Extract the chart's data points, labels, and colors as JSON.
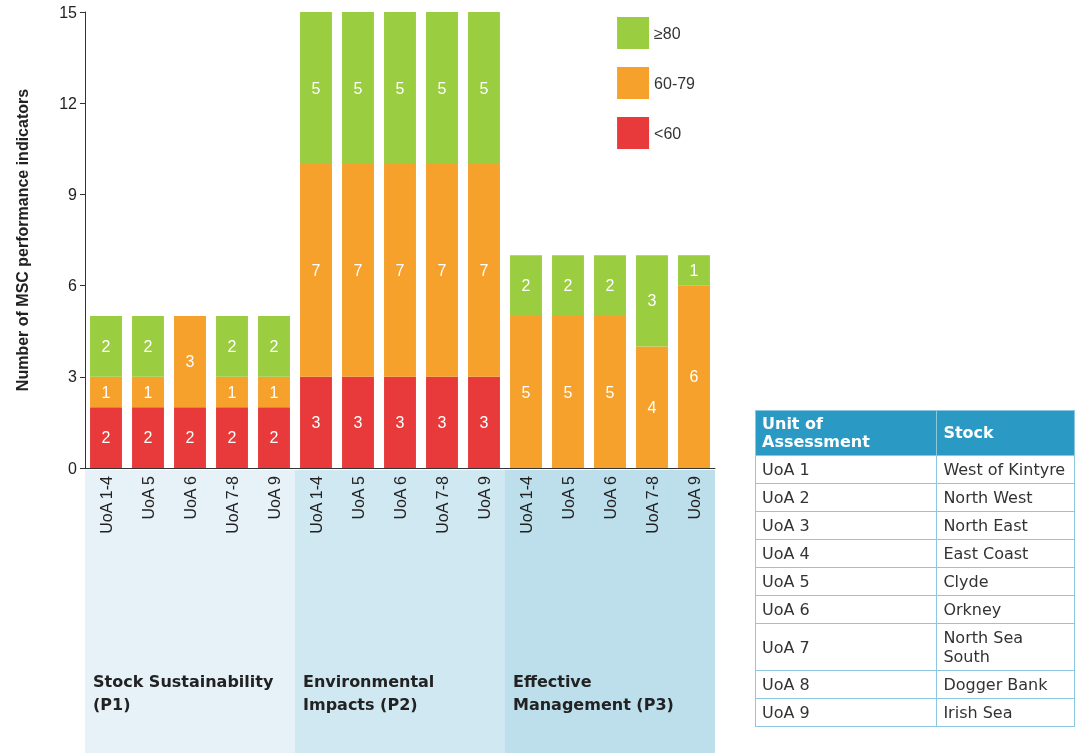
{
  "chart_data": [
    {
      "type": "bar",
      "stacked": true,
      "ylabel": "Number of MSC performance indicators",
      "categories": [
        "UoA 1-4",
        "UoA 5",
        "UoA 6",
        "UoA 7-8",
        "UoA 9",
        "UoA 1-4",
        "UoA 5",
        "UoA 6",
        "UoA 7-8",
        "UoA 9",
        "UoA 1-4",
        "UoA 5",
        "UoA 6",
        "UoA 7-8",
        "UoA 9"
      ],
      "series": [
        {
          "name": "<60",
          "color": "#e83a3a",
          "values": [
            2,
            2,
            2,
            2,
            2,
            3,
            3,
            3,
            3,
            3,
            null,
            null,
            null,
            null,
            null
          ]
        },
        {
          "name": "60-79",
          "color": "#f5a12c",
          "values": [
            1,
            1,
            3,
            1,
            1,
            7,
            7,
            7,
            7,
            7,
            5,
            5,
            5,
            4,
            6
          ]
        },
        {
          "name": "≥80",
          "color": "#9acd3f",
          "values": [
            2,
            2,
            null,
            2,
            2,
            5,
            5,
            5,
            5,
            5,
            2,
            2,
            2,
            3,
            1
          ]
        }
      ],
      "ylim": [
        0,
        15
      ],
      "yticks": [
        0,
        3,
        6,
        9,
        12,
        15
      ],
      "grid": false,
      "legend": "top right",
      "data_labels": true,
      "annotations": [
        "Stock Sustainability (P1)",
        "Environmental Impacts (P2)",
        "Effective Management (P3)"
      ]
    },
    {
      "type": "other",
      "annotations": [
        "Unit of Assessment",
        "Stock",
        "UoA 1",
        "West of Kintyre",
        "UoA 2",
        "North West",
        "UoA 3",
        "North East",
        "UoA 4",
        "East Coast",
        "UoA 5",
        "Clyde",
        "UoA 6",
        "Orkney",
        "UoA 7",
        "North Sea South",
        "UoA 8",
        "Dogger Bank",
        "UoA 9",
        "Irish Sea"
      ]
    }
  ]
}
